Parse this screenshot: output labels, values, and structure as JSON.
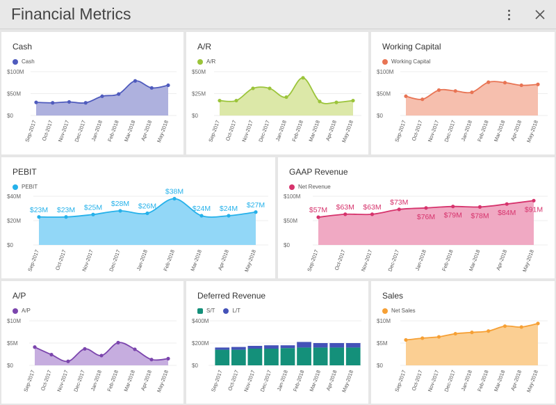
{
  "app": {
    "title": "Financial Metrics"
  },
  "colors": {
    "cash": "#4f5bbd",
    "cash_fill": "#aeb1de",
    "ar": "#9bc43a",
    "ar_fill": "#dce8a8",
    "wc": "#e87454",
    "wc_fill": "#f6bfae",
    "pebit": "#25b1ea",
    "pebit_fill": "#92d7f7",
    "gaap": "#d6336c",
    "gaap_fill": "#f0a9c3",
    "ap": "#7b45ad",
    "ap_fill": "#c6addf",
    "st": "#14907a",
    "lt": "#4452b8",
    "sales": "#f6a035",
    "sales_fill": "#fbcf93"
  },
  "panels": {
    "cash": {
      "title": "Cash",
      "legend": [
        "Cash"
      ]
    },
    "ar": {
      "title": "A/R",
      "legend": [
        "A/R"
      ]
    },
    "wc": {
      "title": "Working Capital",
      "legend": [
        "Working Capital"
      ]
    },
    "pebit": {
      "title": "PEBIT",
      "legend": [
        "PEBIT"
      ]
    },
    "gaap": {
      "title": "GAAP Revenue",
      "legend": [
        "Net Revenue"
      ]
    },
    "ap": {
      "title": "A/P",
      "legend": [
        "A/P"
      ]
    },
    "deferred": {
      "title": "Deferred Revenue",
      "legend": [
        "S/T",
        "L/T"
      ]
    },
    "sales": {
      "title": "Sales",
      "legend": [
        "Net Sales"
      ]
    }
  },
  "chart_data": [
    {
      "id": "cash",
      "type": "area",
      "categories": [
        "Sep-2017",
        "Oct-2017",
        "Nov-2017",
        "Dec-2017",
        "Jan-2018",
        "Feb-2018",
        "Mar-2018",
        "Apr-2018",
        "May-2018"
      ],
      "series": [
        {
          "name": "Cash",
          "values": [
            30,
            29,
            31,
            29,
            44,
            49,
            79,
            63,
            69
          ]
        }
      ],
      "ylim": [
        0,
        100
      ],
      "yticks": [
        "$0",
        "$50M",
        "$100M"
      ],
      "yunit": "M"
    },
    {
      "id": "ar",
      "type": "area",
      "categories": [
        "Sep-2017",
        "Oct-2017",
        "Nov-2017",
        "Dec-2017",
        "Jan-2018",
        "Feb-2018",
        "Mar-2018",
        "Apr-2018",
        "May-2018"
      ],
      "series": [
        {
          "name": "A/R",
          "values": [
            17,
            17,
            31,
            31,
            21,
            43,
            16,
            15,
            17
          ]
        }
      ],
      "ylim": [
        0,
        50
      ],
      "yticks": [
        "$0",
        "$25M",
        "$50M"
      ],
      "yunit": "M"
    },
    {
      "id": "wc",
      "type": "area",
      "categories": [
        "Sep-2017",
        "Oct-2017",
        "Nov-2017",
        "Dec-2017",
        "Jan-2018",
        "Feb-2018",
        "Mar-2018",
        "Apr-2018",
        "May-2018"
      ],
      "series": [
        {
          "name": "Working Capital",
          "values": [
            44,
            37,
            58,
            56,
            53,
            76,
            75,
            69,
            71
          ]
        }
      ],
      "ylim": [
        0,
        100
      ],
      "yticks": [
        "$0",
        "$50M",
        "$100M"
      ],
      "yunit": "M"
    },
    {
      "id": "pebit",
      "type": "area",
      "categories": [
        "Sep-2017",
        "Oct-2017",
        "Nov-2017",
        "Dec-2017",
        "Jan-2018",
        "Feb-2018",
        "Mar-2018",
        "Apr-2018",
        "May-2018"
      ],
      "series": [
        {
          "name": "PEBIT",
          "values": [
            23,
            23,
            25,
            28,
            26,
            38,
            24,
            24,
            27
          ]
        }
      ],
      "data_labels": [
        "$23M",
        "$23M",
        "$25M",
        "$28M",
        "$26M",
        "$38M",
        "$24M",
        "$24M",
        "$27M"
      ],
      "ylim": [
        0,
        40
      ],
      "yticks": [
        "$0",
        "$20M",
        "$40M"
      ],
      "yunit": "M"
    },
    {
      "id": "gaap",
      "type": "area",
      "categories": [
        "Sep-2017",
        "Oct-2017",
        "Nov-2017",
        "Dec-2017",
        "Jan-2018",
        "Feb-2018",
        "Mar-2018",
        "Apr-2018",
        "May-2018"
      ],
      "series": [
        {
          "name": "Net Revenue",
          "values": [
            57,
            63,
            63,
            73,
            76,
            79,
            78,
            84,
            91
          ]
        }
      ],
      "data_labels": [
        "$57M",
        "$63M",
        "$63M",
        "$73M",
        "$76M",
        "$79M",
        "$78M",
        "$84M",
        "$91M"
      ],
      "ylim": [
        0,
        100
      ],
      "yticks": [
        "$0",
        "$50M",
        "$100M"
      ],
      "yunit": "M"
    },
    {
      "id": "ap",
      "type": "area",
      "categories": [
        "Sep-2017",
        "Oct-2017",
        "Nov-2017",
        "Dec-2017",
        "Jan-2018",
        "Feb-2018",
        "Mar-2018",
        "Apr-2018",
        "May-2018"
      ],
      "series": [
        {
          "name": "A/P",
          "values": [
            4.1,
            2.4,
            0.9,
            3.7,
            2.2,
            5.1,
            3.6,
            1.3,
            1.5
          ]
        }
      ],
      "ylim": [
        0,
        10
      ],
      "yticks": [
        "$0",
        "$5M",
        "$10M"
      ],
      "yunit": "M"
    },
    {
      "id": "deferred",
      "type": "bar",
      "stacked": true,
      "categories": [
        "Sep-2017",
        "Oct-2017",
        "Nov-2017",
        "Dec-2017",
        "Jan-2018",
        "Feb-2018",
        "Mar-2018",
        "Apr-2018",
        "May-2018"
      ],
      "series": [
        {
          "name": "S/T",
          "values": [
            140,
            140,
            150,
            150,
            155,
            160,
            160,
            160,
            160
          ]
        },
        {
          "name": "L/T",
          "values": [
            20,
            25,
            25,
            30,
            25,
            50,
            40,
            40,
            40
          ]
        }
      ],
      "ylim": [
        0,
        400
      ],
      "yticks": [
        "$0",
        "$200M",
        "$400M"
      ],
      "yunit": "M"
    },
    {
      "id": "sales",
      "type": "area",
      "categories": [
        "Sep-2017",
        "Oct-2017",
        "Nov-2017",
        "Dec-2017",
        "Jan-2018",
        "Feb-2018",
        "Mar-2018",
        "Apr-2018",
        "May-2018"
      ],
      "series": [
        {
          "name": "Net Sales",
          "values": [
            5.7,
            6.1,
            6.4,
            7.1,
            7.4,
            7.7,
            8.8,
            8.6,
            9.4
          ]
        }
      ],
      "ylim": [
        0,
        10
      ],
      "yticks": [
        "$0",
        "$5M",
        "$10M"
      ],
      "yunit": "M"
    }
  ]
}
